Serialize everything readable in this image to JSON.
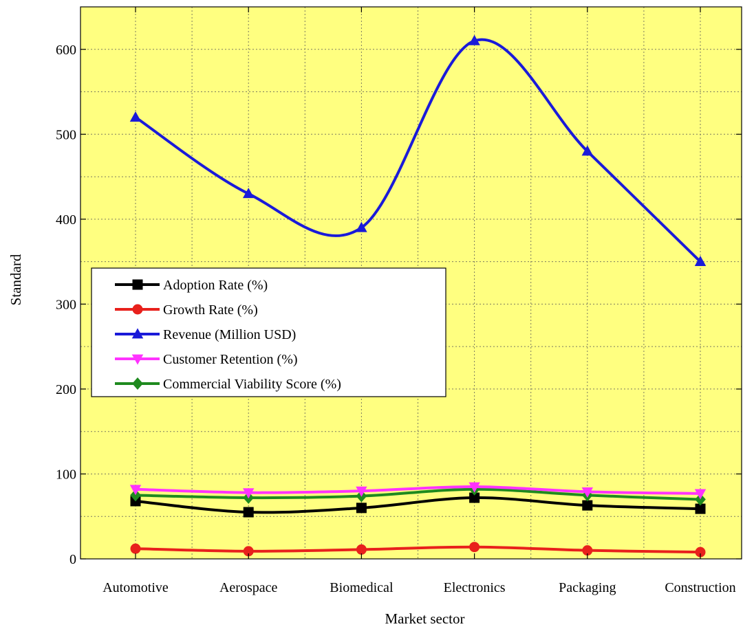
{
  "chart_data": {
    "type": "line",
    "title": "",
    "xlabel": "Market sector",
    "ylabel": "Standard",
    "categories": [
      "Automotive",
      "Aerospace",
      "Biomedical",
      "Electronics",
      "Packaging",
      "Construction"
    ],
    "ylim": [
      0,
      650
    ],
    "yticks": [
      0,
      100,
      200,
      300,
      400,
      500,
      600
    ],
    "grid": true,
    "legend_position": "center-left",
    "background_color": "#ffff80",
    "series": [
      {
        "name": "Adoption Rate (%)",
        "values": [
          68,
          55,
          60,
          72,
          63,
          59
        ],
        "color": "#000000",
        "marker": "square"
      },
      {
        "name": "Growth Rate (%)",
        "values": [
          12,
          9,
          11,
          14,
          10,
          8
        ],
        "color": "#e8211c",
        "marker": "circle"
      },
      {
        "name": "Revenue (Million USD)",
        "values": [
          520,
          430,
          390,
          610,
          480,
          350
        ],
        "color": "#1a1ad9",
        "marker": "triangle-up"
      },
      {
        "name": "Customer Retention (%)",
        "values": [
          82,
          78,
          80,
          85,
          79,
          77
        ],
        "color": "#ff33ff",
        "marker": "triangle-down"
      },
      {
        "name": "Commercial Viability Score (%)",
        "values": [
          75,
          72,
          74,
          82,
          75,
          70
        ],
        "color": "#1f8a1f",
        "marker": "diamond"
      }
    ]
  }
}
